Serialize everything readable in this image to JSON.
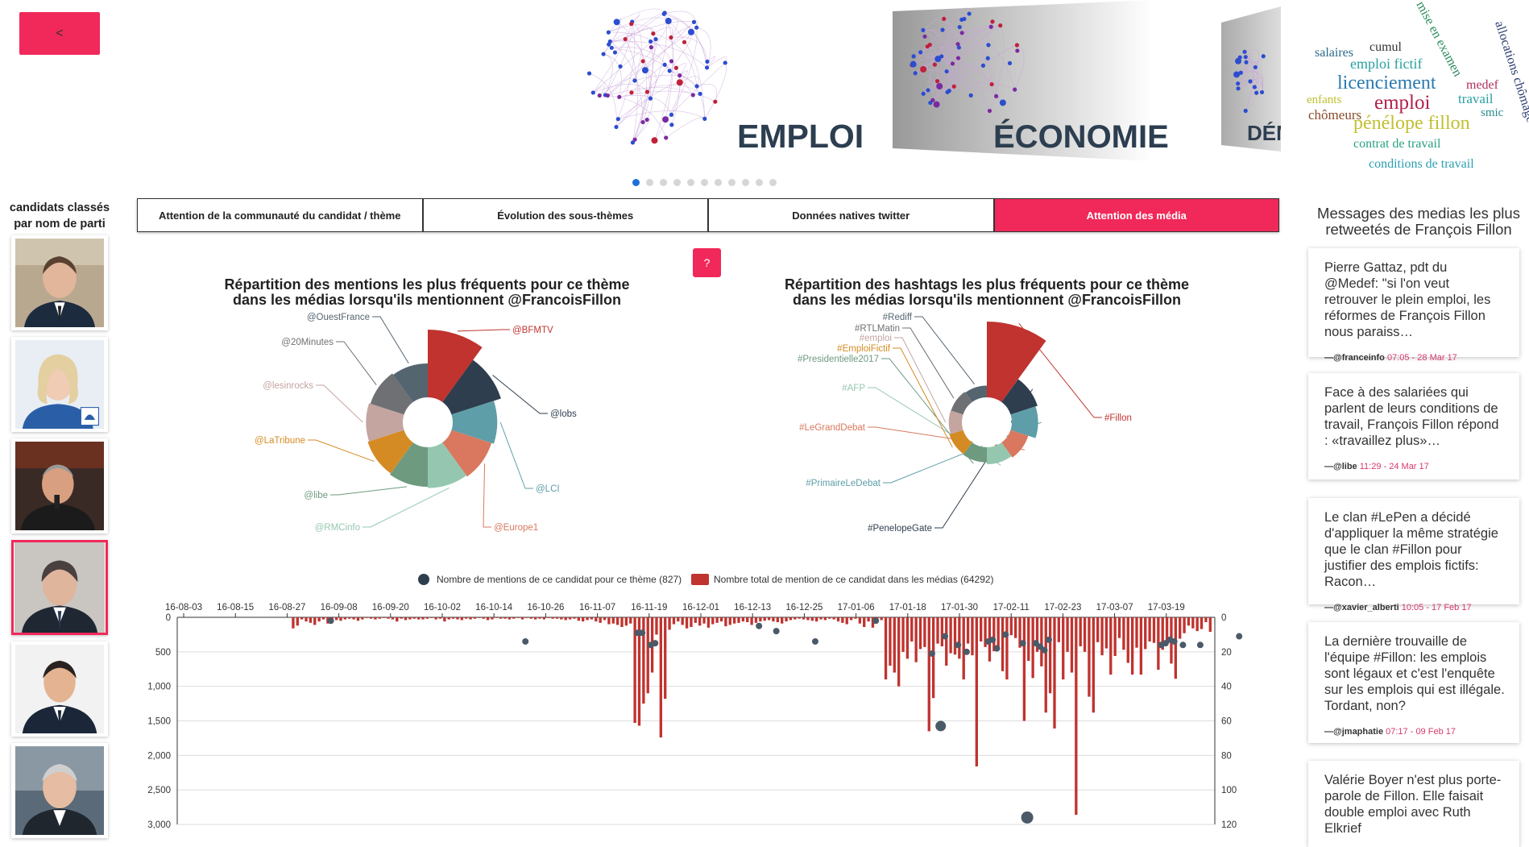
{
  "nav": {
    "back_label": "<",
    "help_label": "?"
  },
  "carousel": {
    "slides": [
      "EMPLOI",
      "ÉCONOMIE",
      "DÉMO"
    ],
    "dot_count": 11,
    "active_dot": 0
  },
  "wordcloud": {
    "words": [
      {
        "text": "salaires",
        "color": "#2a6b8a"
      },
      {
        "text": "cumul",
        "color": "#333"
      },
      {
        "text": "mise en examen",
        "color": "#2a8a5a"
      },
      {
        "text": "allocations chômage",
        "color": "#2c3e70"
      },
      {
        "text": "emploi fictif",
        "color": "#2aa0a0"
      },
      {
        "text": "licenciement",
        "color": "#2a7ab0"
      },
      {
        "text": "medef",
        "color": "#b03060"
      },
      {
        "text": "enfants",
        "color": "#c0c030"
      },
      {
        "text": "emploi",
        "color": "#b0204a"
      },
      {
        "text": "travail",
        "color": "#2aa0a0"
      },
      {
        "text": "smic",
        "color": "#2a8a8a"
      },
      {
        "text": "chômeurs",
        "color": "#8a4a2a"
      },
      {
        "text": "pénélope fillon",
        "color": "#c0c030"
      },
      {
        "text": "contrat de travail",
        "color": "#2aa080"
      },
      {
        "text": "conditions de travail",
        "color": "#2aa0b0"
      }
    ]
  },
  "sidebar": {
    "title_line1": "candidats classés",
    "title_line2": "par nom de parti",
    "candidates": [
      {
        "id": "macron",
        "selected": false
      },
      {
        "id": "le-pen",
        "selected": false
      },
      {
        "id": "melenchon",
        "selected": false
      },
      {
        "id": "fillon",
        "selected": true
      },
      {
        "id": "hamon",
        "selected": false
      },
      {
        "id": "asselineau",
        "selected": false
      }
    ]
  },
  "tabs": [
    {
      "label": "Attention de la communauté du candidat / thème",
      "active": false
    },
    {
      "label": "Évolution des sous-thèmes",
      "active": false
    },
    {
      "label": "Données natives twitter",
      "active": false
    },
    {
      "label": "Attention des média",
      "active": true
    }
  ],
  "colors": {
    "accent": "#f0295a",
    "bar": "#c0332f",
    "dot": "#2e3e4e"
  },
  "chart_data": [
    {
      "type": "pie",
      "title_line1": "Répartition des mentions les plus fréquents pour ce thème",
      "title_line2": "dans les médias lorsqu'ils mentionnent @FrancoisFillon",
      "slices": [
        {
          "label": "@BFMTV",
          "value": 0.22,
          "color": "#c0332f"
        },
        {
          "label": "@lobs",
          "value": 0.13,
          "color": "#2e3e4e"
        },
        {
          "label": "@LCI",
          "value": 0.095,
          "color": "#5e9ea8"
        },
        {
          "label": "@Europe1",
          "value": 0.085,
          "color": "#d9785f"
        },
        {
          "label": "@RMCinfo",
          "value": 0.08,
          "color": "#95c7b0"
        },
        {
          "label": "@libe",
          "value": 0.075,
          "color": "#6e9a80"
        },
        {
          "label": "@LaTribune",
          "value": 0.07,
          "color": "#d58b23"
        },
        {
          "label": "@lesinrocks",
          "value": 0.065,
          "color": "#c4a5a0"
        },
        {
          "label": "@20Minutes",
          "value": 0.06,
          "color": "#6e7074"
        },
        {
          "label": "@OuestFrance",
          "value": 0.055,
          "color": "#546570"
        }
      ]
    },
    {
      "type": "pie",
      "title_line1": "Répartition des hashtags les plus fréquents pour ce thème",
      "title_line2": "dans les médias lorsqu'ils mentionnent @FrancoisFillon",
      "slices": [
        {
          "label": "#Fillon",
          "value": 0.5,
          "color": "#c0332f"
        },
        {
          "label": "#PenelopeGate",
          "value": 0.07,
          "color": "#2e3e4e"
        },
        {
          "label": "#PrimaireLeDebat",
          "value": 0.06,
          "color": "#5e9ea8"
        },
        {
          "label": "#LeGrandDebat",
          "value": 0.03,
          "color": "#d9785f"
        },
        {
          "label": "#AFP",
          "value": 0.025,
          "color": "#95c7b0"
        },
        {
          "label": "#Presidentielle2017",
          "value": 0.02,
          "color": "#6e9a80"
        },
        {
          "label": "#EmploiFictif",
          "value": 0.018,
          "color": "#d58b23"
        },
        {
          "label": "#emploi",
          "value": 0.015,
          "color": "#c4a5a0"
        },
        {
          "label": "#RTLMatin",
          "value": 0.014,
          "color": "#6e7074"
        },
        {
          "label": "#Rediff",
          "value": 0.012,
          "color": "#546570"
        }
      ]
    },
    {
      "type": "bar",
      "legend": [
        {
          "label": "Nombre de mentions de ce candidat pour ce thème (827)",
          "color": "#2e3e4e"
        },
        {
          "label": "Nombre total de mention de ce candidat dans les médias (64292)",
          "color": "#c0332f"
        }
      ],
      "x_ticks": [
        "16-08-03",
        "16-08-15",
        "16-08-27",
        "16-09-08",
        "16-09-20",
        "16-10-02",
        "16-10-14",
        "16-10-26",
        "16-11-07",
        "16-11-19",
        "16-12-01",
        "16-12-13",
        "16-12-25",
        "17-01-06",
        "17-01-18",
        "17-01-30",
        "17-02-11",
        "17-02-23",
        "17-03-07",
        "17-03-19"
      ],
      "y_left_ticks": [
        "0",
        "500",
        "1,000",
        "1,500",
        "2,000",
        "2,500",
        "3,000"
      ],
      "y_right_ticks": [
        "0",
        "20",
        "40",
        "60",
        "80",
        "100",
        "120"
      ],
      "ylim_left": [
        0,
        3000
      ],
      "ylim_right": [
        0,
        120
      ],
      "bars_total": [
        0,
        0,
        0,
        0,
        0,
        0,
        0,
        0,
        0,
        0,
        0,
        0,
        0,
        0,
        0,
        0,
        0,
        0,
        0,
        0,
        0,
        0,
        0,
        0,
        0,
        160,
        120,
        30,
        60,
        80,
        110,
        60,
        30,
        90,
        70,
        40,
        50,
        30,
        20,
        30,
        50,
        30,
        10,
        20,
        30,
        20,
        10,
        20,
        30,
        60,
        20,
        40,
        30,
        20,
        30,
        30,
        20,
        10,
        30,
        20,
        60,
        30,
        20,
        30,
        40,
        20,
        30,
        20,
        10,
        20,
        40,
        30,
        10,
        20,
        20,
        30,
        20,
        10,
        30,
        10,
        20,
        30,
        20,
        30,
        10,
        20,
        20,
        30,
        40,
        30,
        20,
        50,
        60,
        40,
        30,
        60,
        80,
        40,
        100,
        90,
        110,
        140,
        120,
        90,
        1530,
        1570,
        1250,
        1100,
        800,
        250,
        1740,
        1180,
        180,
        100,
        60,
        110,
        160,
        140,
        80,
        120,
        90,
        150,
        100,
        80,
        60,
        130,
        110,
        90,
        80,
        60,
        70,
        110,
        80,
        60,
        50,
        40,
        60,
        70,
        90,
        60,
        40,
        30,
        20,
        30,
        40,
        50,
        60,
        30,
        40,
        20,
        30,
        60,
        80,
        100,
        40,
        20,
        90,
        140,
        60,
        150,
        80,
        40,
        900,
        700,
        800,
        1000,
        500,
        600,
        350,
        650,
        460,
        430,
        1650,
        1170,
        380,
        420,
        700,
        520,
        540,
        600,
        900,
        380,
        550,
        2160,
        350,
        430,
        640,
        490,
        440,
        780,
        900,
        260,
        300,
        440,
        1500,
        630,
        880,
        500,
        710,
        1380,
        1100,
        1610,
        360,
        900,
        500,
        800,
        2860,
        420,
        500,
        1150,
        1380,
        360,
        550,
        450,
        830,
        560,
        300,
        470,
        660,
        830,
        440,
        830,
        460,
        350,
        370,
        760,
        470,
        380,
        670,
        890,
        310,
        230,
        120,
        160,
        200,
        170,
        70,
        210
      ],
      "dots_theme": [
        {
          "i": 34,
          "v": 2
        },
        {
          "i": 79,
          "v": 14
        },
        {
          "i": 105,
          "v": 9
        },
        {
          "i": 106,
          "v": 9
        },
        {
          "i": 108,
          "v": 16
        },
        {
          "i": 109,
          "v": 15
        },
        {
          "i": 133,
          "v": 5
        },
        {
          "i": 137,
          "v": 8
        },
        {
          "i": 146,
          "v": 14
        },
        {
          "i": 160,
          "v": 2
        },
        {
          "i": 173,
          "v": 21
        },
        {
          "i": 175,
          "v": 63
        },
        {
          "i": 176,
          "v": 11
        },
        {
          "i": 179,
          "v": 16
        },
        {
          "i": 181,
          "v": 20
        },
        {
          "i": 186,
          "v": 14
        },
        {
          "i": 187,
          "v": 13
        },
        {
          "i": 188,
          "v": 18
        },
        {
          "i": 190,
          "v": 10
        },
        {
          "i": 194,
          "v": 15
        },
        {
          "i": 195,
          "v": 116
        },
        {
          "i": 197,
          "v": 15
        },
        {
          "i": 198,
          "v": 17
        },
        {
          "i": 199,
          "v": 19
        },
        {
          "i": 200,
          "v": 13
        },
        {
          "i": 226,
          "v": 16
        },
        {
          "i": 227,
          "v": 15
        },
        {
          "i": 228,
          "v": 13
        },
        {
          "i": 229,
          "v": 14
        },
        {
          "i": 231,
          "v": 16
        },
        {
          "i": 235,
          "v": 16
        },
        {
          "i": 244,
          "v": 11
        }
      ]
    }
  ],
  "right_panel": {
    "title": "Messages des medias les plus retweetés de François Fillon",
    "tweets": [
      {
        "text": "Pierre Gattaz, pdt du @Medef: \"si l'on veut retrouver le plein emploi, les réformes de François Fillon nous paraiss…",
        "author": "—@franceinfo",
        "date": "07:05 - 28 Mar 17"
      },
      {
        "text": "Face à des salariées qui parlent de leurs conditions de travail, François Fillon répond : «travaillez plus»…",
        "author": "—@libe",
        "date": "11:29 - 24 Mar 17"
      },
      {
        "text": "Le clan #LePen a décidé d'appliquer la même stratégie que le clan #Fillon pour justifier des emplois fictifs: Racon…",
        "author": "—@xavier_alberti",
        "date": "10:05 - 17 Feb 17"
      },
      {
        "text": "La dernière trouvaille de l'équipe #Fillon: les emplois sont légaux et c'est l'enquête sur les emplois qui est illégale. Tordant, non?",
        "author": "—@jmaphatie",
        "date": "07:17 - 09 Feb 17"
      },
      {
        "text": "Valérie Boyer n'est plus porte-parole de Fillon. Elle faisait double emploi avec Ruth Elkrief",
        "author": "",
        "date": ""
      }
    ]
  }
}
